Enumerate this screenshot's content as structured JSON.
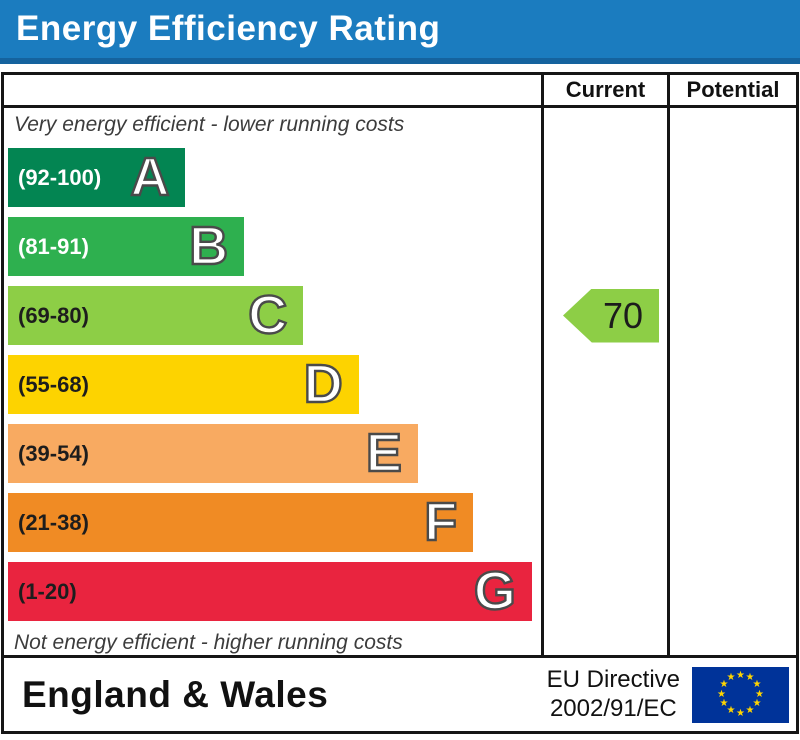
{
  "title": "Energy Efficiency Rating",
  "title_bar": {
    "background": "#1b7cbf",
    "stripe": "#15639e",
    "text_color": "#ffffff"
  },
  "header": {
    "current": "Current",
    "potential": "Potential"
  },
  "captions": {
    "top": "Very energy efficient - lower running costs",
    "bottom": "Not energy efficient - higher running costs"
  },
  "bands": [
    {
      "letter": "A",
      "range": "(92-100)",
      "color": "#038552",
      "label_color": "#ffffff",
      "width_pct": 33.3
    },
    {
      "letter": "B",
      "range": "(81-91)",
      "color": "#2eb04f",
      "label_color": "#ffffff",
      "width_pct": 44.3
    },
    {
      "letter": "C",
      "range": "(69-80)",
      "color": "#8dce46",
      "label_color": "#1d1d1d",
      "width_pct": 55.4
    },
    {
      "letter": "D",
      "range": "(55-68)",
      "color": "#fdd300",
      "label_color": "#1d1d1d",
      "width_pct": 65.8
    },
    {
      "letter": "E",
      "range": "(39-54)",
      "color": "#f8aa61",
      "label_color": "#1d1d1d",
      "width_pct": 76.9
    },
    {
      "letter": "F",
      "range": "(21-38)",
      "color": "#f08b24",
      "label_color": "#1d1d1d",
      "width_pct": 87.3
    },
    {
      "letter": "G",
      "range": "(1-20)",
      "color": "#e9243f",
      "label_color": "#1d1d1d",
      "width_pct": 98.3
    }
  ],
  "current": {
    "value": "70",
    "band": "C",
    "color": "#8dce46",
    "row_index": 2
  },
  "footer": {
    "region": "England & Wales",
    "directive_line1": "EU Directive",
    "directive_line2": "2002/91/EC",
    "eu_flag": {
      "background": "#003399",
      "star_color": "#ffd500",
      "star_count": 12
    }
  },
  "chart_data": {
    "type": "bar",
    "title": "Energy Efficiency Rating",
    "categories": [
      "A",
      "B",
      "C",
      "D",
      "E",
      "F",
      "G"
    ],
    "band_ranges": {
      "A": [
        92,
        100
      ],
      "B": [
        81,
        91
      ],
      "C": [
        69,
        80
      ],
      "D": [
        55,
        68
      ],
      "E": [
        39,
        54
      ],
      "F": [
        21,
        38
      ],
      "G": [
        1,
        20
      ]
    },
    "band_colors": [
      "#038552",
      "#2eb04f",
      "#8dce46",
      "#fdd300",
      "#f8aa61",
      "#f08b24",
      "#e9243f"
    ],
    "relative_bar_widths_pct": [
      33.3,
      44.3,
      55.4,
      65.8,
      76.9,
      87.3,
      98.3
    ],
    "columns": [
      "Current",
      "Potential"
    ],
    "current_rating": 70,
    "current_band": "C",
    "potential_rating": null,
    "top_annotation": "Very energy efficient - lower running costs",
    "bottom_annotation": "Not energy efficient - higher running costs",
    "footer_region": "England & Wales",
    "footer_directive": "EU Directive 2002/91/EC"
  }
}
